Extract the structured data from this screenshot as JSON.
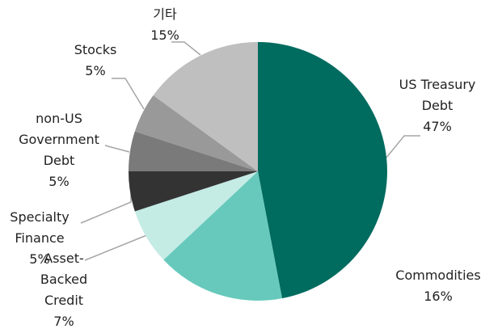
{
  "chart_data": {
    "type": "pie",
    "categories": [
      "US Treasury Debt",
      "Commodities",
      "Asset-Backed Credit",
      "Specialty Finance",
      "non-US Government Debt",
      "Stocks",
      "기타"
    ],
    "values": [
      47,
      16,
      7,
      5,
      5,
      5,
      15
    ],
    "value_labels": [
      "47%",
      "16%",
      "7%",
      "5%",
      "5%",
      "5%",
      "15%"
    ],
    "colors": [
      "#006b5f",
      "#66c9bb",
      "#c5ebe5",
      "#333333",
      "#7a7a7a",
      "#999999",
      "#bfbfbf"
    ]
  }
}
